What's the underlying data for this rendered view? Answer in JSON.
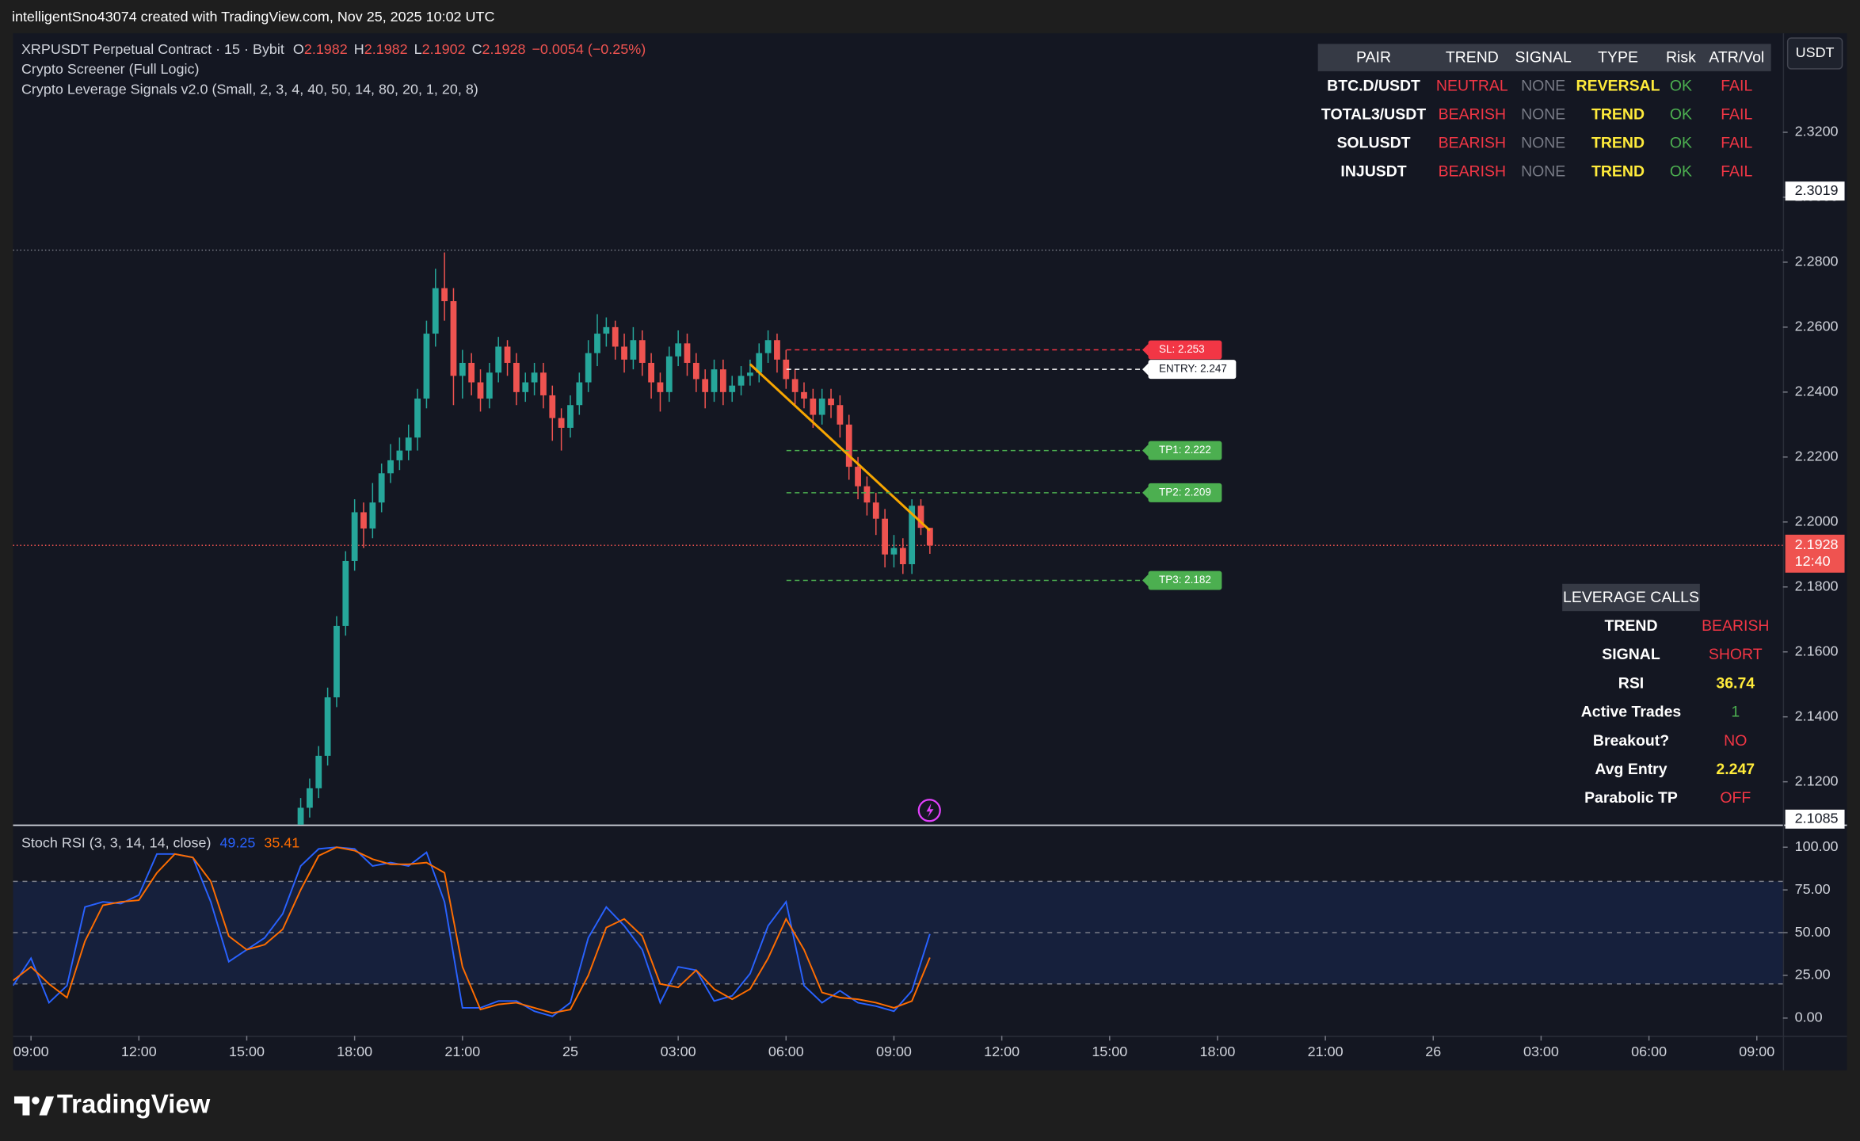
{
  "header": {
    "credit": "intelligentSno43074 created with TradingView.com, Nov 25, 2025 10:02 UTC",
    "brand": "TradingView",
    "currency_button": "USDT"
  },
  "indicators": [
    "Crypto Screener (Full Logic)",
    "Crypto Leverage Signals v2.0 (Small, 2, 3, 4, 40, 50, 14, 80, 20, 1, 20, 8)"
  ],
  "screener": {
    "headers": [
      "PAIR",
      "TREND",
      "SIGNAL",
      "TYPE",
      "Risk",
      "ATR/Vol"
    ],
    "rows": [
      [
        "BTC.D/USDT",
        "NEUTRAL",
        "NONE",
        "REVERSAL",
        "OK",
        "FAIL"
      ],
      [
        "TOTAL3/USDT",
        "BEARISH",
        "NONE",
        "TREND",
        "OK",
        "FAIL"
      ],
      [
        "SOLUSDT",
        "BEARISH",
        "NONE",
        "TREND",
        "OK",
        "FAIL"
      ],
      [
        "INJUSDT",
        "BEARISH",
        "NONE",
        "TREND",
        "OK",
        "FAIL"
      ]
    ]
  },
  "leverage_calls": {
    "title": "LEVERAGE CALLS",
    "rows": [
      [
        "TREND",
        "BEARISH"
      ],
      [
        "SIGNAL",
        "SHORT"
      ],
      [
        "RSI",
        "36.74"
      ],
      [
        "Active Trades",
        "1"
      ],
      [
        "Breakout?",
        "NO"
      ],
      [
        "Avg Entry",
        "2.247"
      ],
      [
        "Parabolic TP",
        "OFF"
      ]
    ]
  },
  "chart_data": [
    {
      "type": "candlestick",
      "title": "XRPUSDT Perpetual Contract · 15 · Bybit",
      "ohlc_labels": [
        "O",
        "H",
        "L",
        "C"
      ],
      "change": "−0.0054 (−0.25%)",
      "up_color": "#26a69a",
      "down_color": "#ef5350",
      "x": [
        30,
        31,
        32,
        33,
        34,
        35,
        36,
        37,
        38,
        39,
        40,
        41,
        42,
        43,
        44,
        45,
        46,
        47,
        48,
        49,
        50,
        51,
        52,
        53,
        54,
        55,
        56,
        57,
        58,
        59,
        60,
        61,
        62,
        63,
        64,
        65,
        66,
        67,
        68,
        69,
        70,
        71,
        72,
        73,
        74,
        75,
        76,
        77,
        78,
        79,
        80,
        81,
        82,
        83,
        84,
        85,
        86,
        87,
        88,
        89,
        90,
        91,
        92,
        93,
        94,
        95,
        96,
        97,
        98,
        99,
        100
      ],
      "open": [
        2.106,
        2.112,
        2.118,
        2.128,
        2.146,
        2.168,
        2.188,
        2.203,
        2.198,
        2.206,
        2.215,
        2.219,
        2.222,
        2.226,
        2.238,
        2.258,
        2.272,
        2.268,
        2.245,
        2.249,
        2.243,
        2.238,
        2.246,
        2.254,
        2.249,
        2.24,
        2.243,
        2.246,
        2.239,
        2.232,
        2.229,
        2.236,
        2.243,
        2.252,
        2.258,
        2.26,
        2.254,
        2.25,
        2.256,
        2.249,
        2.243,
        2.24,
        2.251,
        2.255,
        2.249,
        2.244,
        2.24,
        2.247,
        2.24,
        2.242,
        2.245,
        2.246,
        2.252,
        2.256,
        2.25,
        2.244,
        2.24,
        2.238,
        2.233,
        2.238,
        2.236,
        2.23,
        2.217,
        2.211,
        2.206,
        2.201,
        2.19,
        2.192,
        2.187,
        2.205,
        2.1982
      ],
      "high": [
        2.115,
        2.121,
        2.131,
        2.149,
        2.171,
        2.191,
        2.207,
        2.206,
        2.212,
        2.218,
        2.224,
        2.226,
        2.23,
        2.241,
        2.262,
        2.278,
        2.283,
        2.272,
        2.253,
        2.252,
        2.247,
        2.249,
        2.257,
        2.256,
        2.252,
        2.246,
        2.249,
        2.249,
        2.242,
        2.235,
        2.239,
        2.246,
        2.256,
        2.264,
        2.263,
        2.262,
        2.258,
        2.26,
        2.259,
        2.252,
        2.246,
        2.254,
        2.259,
        2.258,
        2.252,
        2.247,
        2.25,
        2.25,
        2.245,
        2.248,
        2.25,
        2.255,
        2.259,
        2.258,
        2.253,
        2.247,
        2.243,
        2.241,
        2.241,
        2.241,
        2.239,
        2.233,
        2.22,
        2.214,
        2.209,
        2.204,
        2.196,
        2.195,
        2.207,
        2.207,
        2.1982
      ],
      "low": [
        2.103,
        2.109,
        2.115,
        2.125,
        2.143,
        2.165,
        2.185,
        2.192,
        2.195,
        2.203,
        2.212,
        2.216,
        2.219,
        2.222,
        2.235,
        2.254,
        2.262,
        2.236,
        2.238,
        2.239,
        2.234,
        2.235,
        2.243,
        2.245,
        2.236,
        2.237,
        2.239,
        2.235,
        2.225,
        2.222,
        2.226,
        2.233,
        2.24,
        2.248,
        2.254,
        2.25,
        2.246,
        2.247,
        2.245,
        2.238,
        2.234,
        2.237,
        2.248,
        2.245,
        2.24,
        2.235,
        2.237,
        2.236,
        2.237,
        2.239,
        2.242,
        2.243,
        2.249,
        2.246,
        2.241,
        2.236,
        2.235,
        2.229,
        2.23,
        2.232,
        2.226,
        2.213,
        2.207,
        2.202,
        2.196,
        2.186,
        2.186,
        2.184,
        2.184,
        2.196,
        2.1902
      ],
      "close": [
        2.112,
        2.118,
        2.128,
        2.146,
        2.168,
        2.188,
        2.203,
        2.198,
        2.206,
        2.215,
        2.219,
        2.222,
        2.226,
        2.238,
        2.258,
        2.272,
        2.268,
        2.245,
        2.249,
        2.243,
        2.238,
        2.246,
        2.254,
        2.249,
        2.24,
        2.243,
        2.246,
        2.239,
        2.232,
        2.229,
        2.236,
        2.243,
        2.252,
        2.258,
        2.26,
        2.254,
        2.25,
        2.256,
        2.249,
        2.243,
        2.24,
        2.251,
        2.255,
        2.249,
        2.244,
        2.24,
        2.247,
        2.24,
        2.242,
        2.245,
        2.246,
        2.252,
        2.256,
        2.25,
        2.244,
        2.24,
        2.238,
        2.233,
        2.238,
        2.236,
        2.23,
        2.217,
        2.211,
        2.206,
        2.201,
        2.19,
        2.192,
        2.187,
        2.205,
        2.1982,
        2.1928
      ],
      "xlim": [
        -2,
        194.9
      ],
      "xticks": [
        {
          "value": 0,
          "label": "09:00"
        },
        {
          "value": 12,
          "label": "12:00"
        },
        {
          "value": 24,
          "label": "15:00"
        },
        {
          "value": 36,
          "label": "18:00"
        },
        {
          "value": 48,
          "label": "21:00"
        },
        {
          "value": 60,
          "label": "25"
        },
        {
          "value": 72,
          "label": "03:00"
        },
        {
          "value": 84,
          "label": "06:00"
        },
        {
          "value": 96,
          "label": "09:00"
        },
        {
          "value": 108,
          "label": "12:00"
        },
        {
          "value": 120,
          "label": "15:00"
        },
        {
          "value": 132,
          "label": "18:00"
        },
        {
          "value": 144,
          "label": "21:00"
        },
        {
          "value": 156,
          "label": "26"
        },
        {
          "value": 168,
          "label": "03:00"
        },
        {
          "value": 180,
          "label": "06:00"
        },
        {
          "value": 192,
          "label": "09:00"
        }
      ],
      "ylim": [
        2.1068,
        2.3505
      ],
      "yticks": [
        {
          "value": 2.12,
          "label": "2.1200"
        },
        {
          "value": 2.14,
          "label": "2.1400"
        },
        {
          "value": 2.16,
          "label": "2.1600"
        },
        {
          "value": 2.18,
          "label": "2.1800"
        },
        {
          "value": 2.2,
          "label": "2.2000"
        },
        {
          "value": 2.22,
          "label": "2.2200"
        },
        {
          "value": 2.24,
          "label": "2.2400"
        },
        {
          "value": 2.26,
          "label": "2.2600"
        },
        {
          "value": 2.28,
          "label": "2.2800"
        },
        {
          "value": 2.3,
          "label": "2.3000"
        },
        {
          "value": 2.32,
          "label": "2.3200"
        }
      ],
      "marked_prices": [
        2.3019,
        2.1085
      ],
      "countdown": "12:40",
      "high_line": 2.2837,
      "levels": [
        {
          "label": "SL: 2.253",
          "value": 2.253,
          "color": "#f23645"
        },
        {
          "label": "ENTRY: 2.247",
          "value": 2.247,
          "color": "#ffffff"
        },
        {
          "label": "TP1: 2.222",
          "value": 2.222,
          "color": "#4caf50"
        },
        {
          "label": "TP2: 2.209",
          "value": 2.209,
          "color": "#4caf50"
        },
        {
          "label": "TP3: 2.182",
          "value": 2.182,
          "color": "#4caf50"
        }
      ],
      "trendline": {
        "x": [
          80,
          100
        ],
        "y": [
          2.2486,
          2.1974
        ],
        "color": "#f7a600"
      }
    },
    {
      "type": "line",
      "title": "Stoch RSI (3, 3, 14, 14, close)",
      "x": [
        -2,
        0,
        2,
        4,
        6,
        8,
        10,
        12,
        14,
        16,
        18,
        20,
        22,
        24,
        26,
        28,
        30,
        32,
        34,
        36,
        38,
        40,
        42,
        44,
        46,
        48,
        50,
        52,
        54,
        56,
        58,
        60,
        62,
        64,
        66,
        68,
        70,
        72,
        74,
        76,
        78,
        80,
        82,
        84,
        86,
        88,
        90,
        92,
        94,
        96,
        98,
        100
      ],
      "series": [
        {
          "color": "#2962ff",
          "values": [
            19,
            35,
            9,
            19,
            65,
            68,
            67,
            72,
            96,
            96,
            94,
            68,
            33,
            40,
            47,
            61,
            89,
            99,
            100,
            99,
            89,
            91,
            89,
            97,
            68,
            6,
            6,
            10,
            10,
            4,
            1,
            9,
            47,
            65,
            54,
            40,
            9,
            30,
            28,
            10,
            13,
            26,
            54,
            68,
            19,
            9,
            16,
            9,
            7,
            4,
            16,
            49.25
          ]
        },
        {
          "color": "#ff6d00",
          "values": [
            22,
            30,
            20,
            12,
            45,
            66,
            68,
            69,
            85,
            96,
            94,
            80,
            48,
            40,
            43,
            52,
            75,
            95,
            100,
            98,
            93,
            90,
            90,
            91,
            85,
            30,
            5,
            8,
            9,
            6,
            3,
            5,
            25,
            53,
            58,
            48,
            20,
            18,
            28,
            17,
            11,
            17,
            35,
            58,
            40,
            15,
            12,
            11,
            9,
            6,
            10,
            35.41
          ]
        }
      ],
      "xlim": [
        -2,
        194.9
      ],
      "ylim": [
        -10.4,
        111.8
      ],
      "yticks": [
        {
          "value": 0,
          "label": "0.00"
        },
        {
          "value": 25,
          "label": "25.00"
        },
        {
          "value": 50,
          "label": "50.00"
        },
        {
          "value": 75,
          "label": "75.00"
        },
        {
          "value": 100,
          "label": "100.00"
        }
      ],
      "band": [
        20,
        80
      ],
      "midline": 50
    }
  ]
}
